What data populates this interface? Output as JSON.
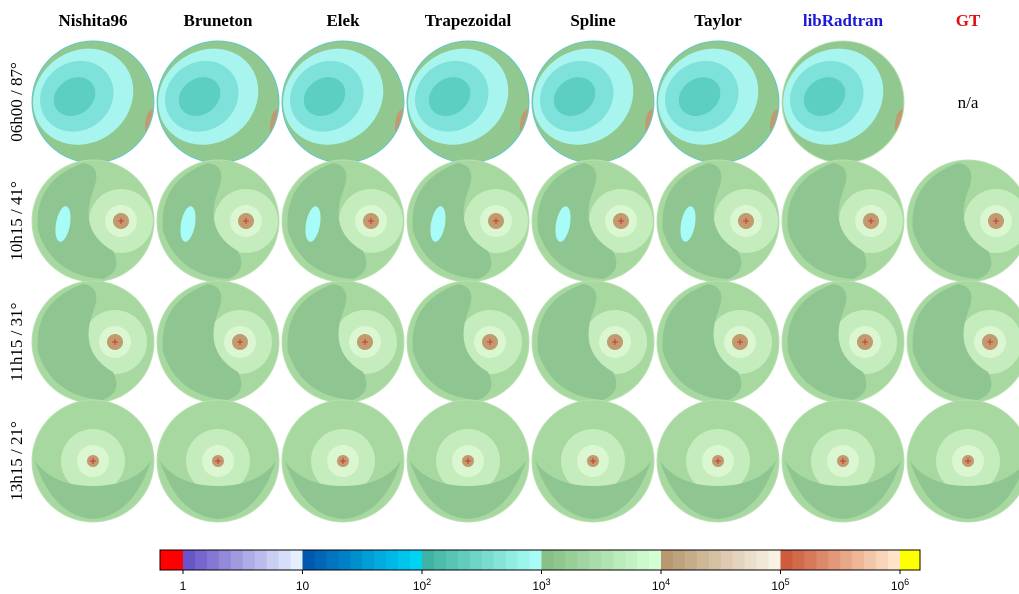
{
  "columns": [
    {
      "label": "Nishita96",
      "color": "#000000"
    },
    {
      "label": "Bruneton",
      "color": "#000000"
    },
    {
      "label": "Elek",
      "color": "#000000"
    },
    {
      "label": "Trapezoidal",
      "color": "#000000"
    },
    {
      "label": "Spline",
      "color": "#000000"
    },
    {
      "label": "Taylor",
      "color": "#000000"
    },
    {
      "label": "libRadtran",
      "color": "#1a1ad6"
    },
    {
      "label": "GT",
      "color": "#e01010"
    }
  ],
  "rows": [
    "06h00 / 87°",
    "10h15 / 41°",
    "11h15 / 31°",
    "13h15 / 21°"
  ],
  "missing": "n/a",
  "colorbar": {
    "ticks": [
      {
        "base": "1"
      },
      {
        "base": "10"
      },
      {
        "base": "10",
        "exp": "2"
      },
      {
        "base": "10",
        "exp": "3"
      },
      {
        "base": "10",
        "exp": "4"
      },
      {
        "base": "10",
        "exp": "5"
      },
      {
        "base": "10",
        "exp": "6"
      }
    ]
  }
}
